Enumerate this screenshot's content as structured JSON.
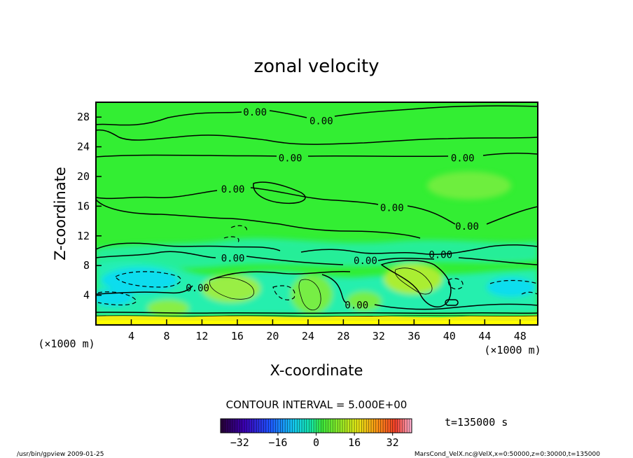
{
  "chart_data": {
    "type": "heatmap",
    "title": "zonal velocity",
    "xlabel": "X-coordinate",
    "ylabel": "Z-coordinate",
    "x_unit": "(×1000 m)",
    "y_unit": "(×1000 m)",
    "xlim": [
      0,
      50
    ],
    "ylim": [
      0,
      30
    ],
    "x_ticks": [
      4,
      8,
      12,
      16,
      20,
      24,
      28,
      32,
      36,
      40,
      44,
      48
    ],
    "y_ticks": [
      4,
      8,
      12,
      16,
      20,
      24,
      28
    ],
    "contour_labels": [
      {
        "text": "0.00",
        "x": 18,
        "z": 28.7
      },
      {
        "text": "0.00",
        "x": 25.5,
        "z": 27.5
      },
      {
        "text": "0.00",
        "x": 22,
        "z": 22.5
      },
      {
        "text": "0.00",
        "x": 41.5,
        "z": 22.5
      },
      {
        "text": "0.00",
        "x": 15.5,
        "z": 18.3
      },
      {
        "text": "0.00",
        "x": 33.5,
        "z": 15.8
      },
      {
        "text": "0.00",
        "x": 42,
        "z": 13.3
      },
      {
        "text": "0.00",
        "x": 15.5,
        "z": 9
      },
      {
        "text": "0.00",
        "x": 30.5,
        "z": 8.7
      },
      {
        "text": "0.00",
        "x": 39,
        "z": 9.5
      },
      {
        "text": "0.00",
        "x": 11.5,
        "z": 5
      },
      {
        "text": "0.00",
        "x": 29.5,
        "z": 2.7
      }
    ],
    "contour_interval_text": "CONTOUR INTERVAL = 5.000E+00",
    "colorbar": {
      "min": -40,
      "max": 40,
      "ticks": [
        -32,
        -16,
        0,
        16,
        32
      ]
    },
    "grid": false
  },
  "annotations": {
    "time": "t=135000 s",
    "footer_left": "/usr/bin/gpview  2009-01-25",
    "footer_right": "MarsCond_VelX.nc@VelX,x=0:50000,z=0:30000,t=135000"
  },
  "colors": {
    "field": "#33ee33",
    "field_light": "#88ee44",
    "negative": "#22eebb",
    "strong_negative": "#11ddee",
    "positive": "#bbee33",
    "surface": "#eeee11",
    "frame": "#000000"
  }
}
